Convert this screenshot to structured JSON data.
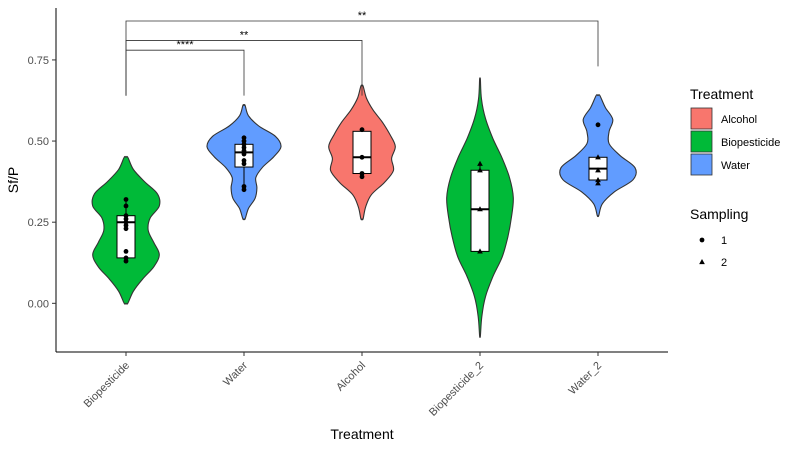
{
  "chart_data": {
    "type": "violin",
    "xlabel": "Treatment",
    "ylabel": "Sf/P",
    "ylim": [
      -0.15,
      0.91
    ],
    "y_ticks": [
      "0.00",
      "0.25",
      "0.50",
      "0.75"
    ],
    "y_tick_values": [
      0,
      0.25,
      0.5,
      0.75
    ],
    "categories": [
      "Biopesticide",
      "Water",
      "Alcohol",
      "Biopesticide_2",
      "Water_2"
    ],
    "violins": [
      {
        "category": "Biopesticide",
        "treatment": "Biopesticide",
        "range": [
          0.0,
          0.45
        ],
        "density": [
          0.05,
          0.2,
          0.45,
          0.75,
          0.9,
          0.75,
          0.6,
          0.65,
          0.9,
          0.85,
          0.5,
          0.2,
          0.05
        ],
        "box": {
          "q1": 0.14,
          "median": 0.25,
          "q3": 0.27,
          "min": 0.13,
          "max": 0.32
        },
        "points": [
          {
            "y": 0.13,
            "s": 1
          },
          {
            "y": 0.14,
            "s": 1
          },
          {
            "y": 0.16,
            "s": 1
          },
          {
            "y": 0.23,
            "s": 1
          },
          {
            "y": 0.24,
            "s": 1
          },
          {
            "y": 0.25,
            "s": 1
          },
          {
            "y": 0.26,
            "s": 1
          },
          {
            "y": 0.27,
            "s": 1
          },
          {
            "y": 0.3,
            "s": 1
          },
          {
            "y": 0.32,
            "s": 1
          }
        ]
      },
      {
        "category": "Water",
        "treatment": "Water",
        "range": [
          0.26,
          0.61
        ],
        "density": [
          0.03,
          0.12,
          0.3,
          0.35,
          0.32,
          0.5,
          0.8,
          1.0,
          0.85,
          0.4,
          0.12,
          0.03
        ],
        "box": {
          "q1": 0.42,
          "median": 0.465,
          "q3": 0.49,
          "min": 0.35,
          "max": 0.51
        },
        "points": [
          {
            "y": 0.35,
            "s": 1
          },
          {
            "y": 0.36,
            "s": 1
          },
          {
            "y": 0.43,
            "s": 1
          },
          {
            "y": 0.44,
            "s": 1
          },
          {
            "y": 0.46,
            "s": 1
          },
          {
            "y": 0.47,
            "s": 1
          },
          {
            "y": 0.48,
            "s": 1
          },
          {
            "y": 0.49,
            "s": 1
          },
          {
            "y": 0.5,
            "s": 1
          },
          {
            "y": 0.51,
            "s": 1
          }
        ]
      },
      {
        "category": "Alcohol",
        "treatment": "Alcohol",
        "range": [
          0.26,
          0.67
        ],
        "density": [
          0.03,
          0.1,
          0.25,
          0.6,
          0.85,
          0.8,
          0.9,
          0.75,
          0.55,
          0.3,
          0.12,
          0.03
        ],
        "box": {
          "q1": 0.4,
          "median": 0.45,
          "q3": 0.53,
          "min": 0.39,
          "max": 0.535
        },
        "points": [
          {
            "y": 0.39,
            "s": 1
          },
          {
            "y": 0.4,
            "s": 1
          },
          {
            "y": 0.45,
            "s": 1
          },
          {
            "y": 0.535,
            "s": 1
          }
        ]
      },
      {
        "category": "Biopesticide_2",
        "treatment": "Biopesticide",
        "range": [
          -0.1,
          0.69
        ],
        "density": [
          0.01,
          0.05,
          0.15,
          0.35,
          0.6,
          0.75,
          0.85,
          0.9,
          0.8,
          0.6,
          0.35,
          0.15,
          0.04,
          0.01
        ],
        "box": {
          "q1": 0.16,
          "median": 0.29,
          "q3": 0.41,
          "min": 0.16,
          "max": 0.43
        },
        "points": [
          {
            "y": 0.16,
            "s": 2
          },
          {
            "y": 0.29,
            "s": 2
          },
          {
            "y": 0.41,
            "s": 2
          },
          {
            "y": 0.43,
            "s": 2
          }
        ]
      },
      {
        "category": "Water_2",
        "treatment": "Water",
        "range": [
          0.27,
          0.64
        ],
        "density": [
          0.02,
          0.12,
          0.45,
          0.95,
          1.0,
          0.6,
          0.3,
          0.3,
          0.4,
          0.2,
          0.05
        ],
        "box": {
          "q1": 0.38,
          "median": 0.415,
          "q3": 0.45,
          "min": 0.37,
          "max": 0.45
        },
        "points": [
          {
            "y": 0.37,
            "s": 2
          },
          {
            "y": 0.38,
            "s": 2
          },
          {
            "y": 0.41,
            "s": 2
          },
          {
            "y": 0.45,
            "s": 2
          },
          {
            "y": 0.55,
            "s": 1
          }
        ]
      }
    ],
    "significance": [
      {
        "from": "Biopesticide",
        "to": "Water",
        "label": "****",
        "y": 0.78,
        "from_y": 0.64,
        "to_y": 0.64
      },
      {
        "from": "Biopesticide",
        "to": "Alcohol",
        "label": "**",
        "y": 0.81,
        "from_y": 0.64,
        "to_y": 0.64
      },
      {
        "from": "Biopesticide",
        "to": "Water_2",
        "label": "**",
        "y": 0.87,
        "from_y": 0.64,
        "to_y": 0.73
      }
    ],
    "legend": {
      "treatment_title": "Treatment",
      "treatment_items": [
        {
          "label": "Alcohol",
          "color": "#F8766D"
        },
        {
          "label": "Biopesticide",
          "color": "#00BA38"
        },
        {
          "label": "Water",
          "color": "#619CFF"
        }
      ],
      "sampling_title": "Sampling",
      "sampling_items": [
        {
          "label": "1",
          "shape": "circle"
        },
        {
          "label": "2",
          "shape": "triangle"
        }
      ]
    }
  }
}
